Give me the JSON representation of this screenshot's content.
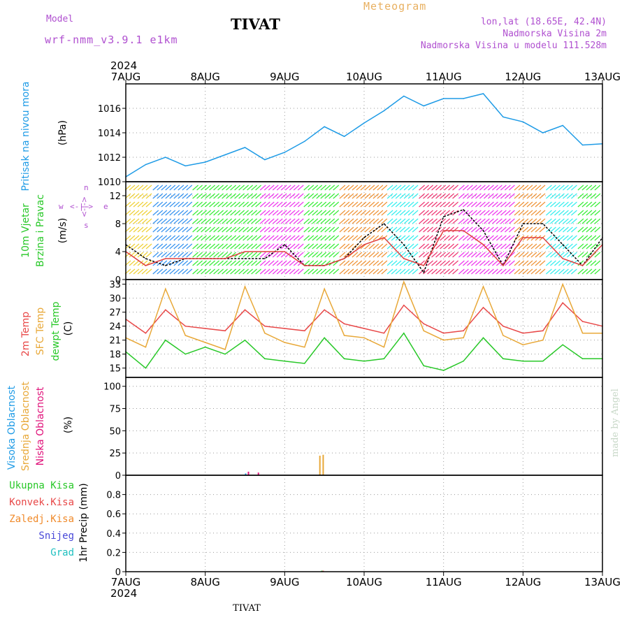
{
  "header": {
    "model_label": "Model",
    "model_name": "wrf-nmm_v3.9.1 e1km",
    "station_title": "TIVAT",
    "product": "Meteogram",
    "location": "lon,lat (18.65E, 42.4N)",
    "station_altitude": "Nadmorska Visina 2m",
    "model_altitude": "Nadmorska Visina u modelu 111.528m"
  },
  "footer": {
    "station": "TIVAT"
  },
  "watermark": "made by Angel",
  "x_axis": {
    "year": "2024",
    "ticks": [
      "7AUG",
      "8AUG",
      "9AUG",
      "10AUG",
      "11AUG",
      "12AUG",
      "13AUG"
    ]
  },
  "chart_data": [
    {
      "type": "line",
      "panel": "pressure",
      "ylabel_parts": [
        "Pritisak na nivou mora",
        "(hPa)"
      ],
      "ylim": [
        1010,
        1018
      ],
      "yticks": [
        "1010",
        "1012",
        "1014",
        "1016"
      ],
      "grid": true,
      "x": [
        "7AUG 00",
        "7AUG 06",
        "7AUG 12",
        "7AUG 18",
        "8AUG 00",
        "8AUG 06",
        "8AUG 12",
        "8AUG 18",
        "9AUG 00",
        "9AUG 06",
        "9AUG 12",
        "9AUG 18",
        "10AUG 00",
        "10AUG 06",
        "10AUG 12",
        "10AUG 18",
        "11AUG 00",
        "11AUG 06",
        "11AUG 12",
        "11AUG 18",
        "12AUG 00",
        "12AUG 06",
        "12AUG 12",
        "12AUG 18",
        "13AUG 00"
      ],
      "series": [
        {
          "name": "Pritisak na nivou mora",
          "color": "#1e9be6",
          "values": [
            1010.4,
            1011.4,
            1012.0,
            1011.3,
            1011.6,
            1012.2,
            1012.8,
            1011.8,
            1012.4,
            1013.3,
            1014.5,
            1013.7,
            1014.8,
            1015.8,
            1017.0,
            1016.2,
            1016.8,
            1016.8,
            1017.2,
            1015.3,
            1014.9,
            1014.0,
            1014.6,
            1013.0,
            1013.1
          ]
        }
      ]
    },
    {
      "type": "line",
      "panel": "wind",
      "ylabel_parts": [
        "10m Vjetar",
        "Brzina i Pravac",
        "(m/s)"
      ],
      "direction_legend": [
        "w",
        "<-|->",
        "e",
        "n",
        "s"
      ],
      "ylim": [
        0,
        14
      ],
      "yticks": [
        "0",
        "4",
        "8",
        "12"
      ],
      "grid": true,
      "x": [
        "7AUG 00",
        "7AUG 06",
        "7AUG 12",
        "7AUG 18",
        "8AUG 00",
        "8AUG 06",
        "8AUG 12",
        "8AUG 18",
        "9AUG 00",
        "9AUG 06",
        "9AUG 12",
        "9AUG 18",
        "10AUG 00",
        "10AUG 06",
        "10AUG 12",
        "10AUG 18",
        "11AUG 00",
        "11AUG 06",
        "11AUG 12",
        "11AUG 18",
        "12AUG 00",
        "12AUG 06",
        "12AUG 12",
        "12AUG 18",
        "13AUG 00"
      ],
      "series": [
        {
          "name": "10m Vjetar",
          "color": "#000000",
          "values": [
            5,
            3,
            2,
            3,
            3,
            3,
            3,
            3,
            5,
            2,
            2,
            3,
            6,
            8,
            5,
            1,
            9,
            10,
            7,
            2,
            8,
            8,
            5,
            2,
            6
          ]
        },
        {
          "name": "10m Vjetar (red)",
          "color": "#e04040",
          "values": [
            4,
            2,
            3,
            3,
            3,
            3,
            4,
            4,
            4,
            2,
            2,
            3,
            5,
            6,
            3,
            2,
            7,
            7,
            5,
            2,
            6,
            6,
            3,
            2,
            5
          ]
        }
      ]
    },
    {
      "type": "line",
      "panel": "temperature",
      "ylabel_parts": [
        "2m Temp",
        "SFC Temp",
        "dewpt Temp",
        "(C)"
      ],
      "ylim": [
        13,
        34
      ],
      "yticks": [
        "15",
        "18",
        "21",
        "24",
        "27",
        "30",
        "33"
      ],
      "grid": true,
      "x": [
        "7AUG 00",
        "7AUG 06",
        "7AUG 12",
        "7AUG 18",
        "8AUG 00",
        "8AUG 06",
        "8AUG 12",
        "8AUG 18",
        "9AUG 00",
        "9AUG 06",
        "9AUG 12",
        "9AUG 18",
        "10AUG 00",
        "10AUG 06",
        "10AUG 12",
        "10AUG 18",
        "11AUG 00",
        "11AUG 06",
        "11AUG 12",
        "11AUG 18",
        "12AUG 00",
        "12AUG 06",
        "12AUG 12",
        "12AUG 18",
        "13AUG 00"
      ],
      "series": [
        {
          "name": "2m Temp",
          "color": "#e84848",
          "values": [
            25.5,
            22.5,
            27.5,
            24.0,
            23.5,
            23.0,
            27.5,
            24.0,
            23.5,
            23.0,
            27.5,
            24.5,
            23.5,
            22.5,
            28.5,
            24.5,
            22.5,
            23.0,
            28.0,
            24.0,
            22.5,
            23.0,
            29.0,
            25.0,
            24.0
          ]
        },
        {
          "name": "SFC Temp",
          "color": "#e8a838",
          "values": [
            21.5,
            19.5,
            32.0,
            22.0,
            20.5,
            19.0,
            32.5,
            22.5,
            20.5,
            19.5,
            32.0,
            22.0,
            21.5,
            19.5,
            33.5,
            23.0,
            21.0,
            21.5,
            32.5,
            22.0,
            20.0,
            21.0,
            33.0,
            22.5,
            22.5
          ]
        },
        {
          "name": "dewpt Temp",
          "color": "#28c828",
          "values": [
            18.5,
            15.0,
            21.0,
            18.0,
            19.5,
            18.0,
            21.0,
            17.0,
            16.5,
            16.0,
            21.5,
            17.0,
            16.5,
            17.0,
            22.5,
            15.5,
            14.5,
            16.5,
            21.5,
            17.0,
            16.5,
            16.5,
            20.0,
            17.0,
            17.0
          ]
        }
      ]
    },
    {
      "type": "bar",
      "panel": "cloud",
      "ylabel_parts": [
        "Visoka Oblacnost",
        "Srednja Oblacnost",
        "Niska Oblacnost",
        "(%)"
      ],
      "ylim": [
        0,
        110
      ],
      "yticks": [
        "0",
        "25",
        "50",
        "75",
        "100"
      ],
      "grid": true,
      "series": [
        {
          "name": "Visoka Oblacnost",
          "color": "#1e9be6",
          "points": [
            {
              "x": "8AUG 12",
              "value": 2
            }
          ]
        },
        {
          "name": "Srednja Oblacnost",
          "color": "#e8a838",
          "points": [
            {
              "x": "9AUG 10",
              "value": 22
            },
            {
              "x": "9AUG 11",
              "value": 23
            }
          ]
        },
        {
          "name": "Niska Oblacnost",
          "color": "#e0127a",
          "points": [
            {
              "x": "8AUG 12",
              "value": 4
            },
            {
              "x": "8AUG 15",
              "value": 3
            }
          ]
        }
      ]
    },
    {
      "type": "bar",
      "panel": "precip",
      "ylabel_parts": [
        "1hr Precip (mm)"
      ],
      "legend": [
        {
          "name": "Ukupna Kisa",
          "color": "#28c828"
        },
        {
          "name": "Konvek.Kisa",
          "color": "#e84848"
        },
        {
          "name": "Zaledj.Kisa",
          "color": "#f08a2a"
        },
        {
          "name": "Snijeg",
          "color": "#4848d8"
        },
        {
          "name": "Grad",
          "color": "#20c0c0"
        }
      ],
      "ylim": [
        0,
        1
      ],
      "yticks": [
        "0",
        "0.2",
        "0.4",
        "0.6",
        "0.8"
      ],
      "grid": true,
      "series": [
        {
          "name": "Ukupna Kisa",
          "color": "#28c828",
          "points": [
            {
              "x": "9AUG 11",
              "value": 0.01
            }
          ]
        },
        {
          "name": "Konvek.Kisa",
          "color": "#e84848",
          "points": [
            {
              "x": "9AUG 11",
              "value": 0.01
            }
          ]
        }
      ]
    }
  ]
}
